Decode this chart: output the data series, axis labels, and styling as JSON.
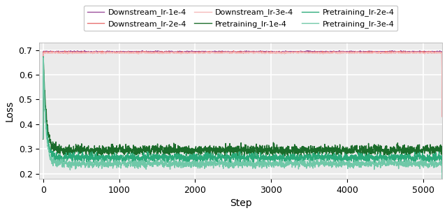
{
  "title": "",
  "xlabel": "Step",
  "ylabel": "Loss",
  "xlim": [
    -50,
    5250
  ],
  "ylim": [
    0.18,
    0.73
  ],
  "yticks": [
    0.2,
    0.3,
    0.4,
    0.5,
    0.6,
    0.7
  ],
  "xticks": [
    0,
    1000,
    2000,
    3000,
    4000,
    5000
  ],
  "figsize": [
    6.4,
    3.05
  ],
  "dpi": 100,
  "legend_labels": [
    "Downstream_lr-1e-4",
    "Downstream_lr-2e-4",
    "Downstream_lr-3e-4",
    "Pretraining_lr-1e-4",
    "Pretraining_lr-2e-4",
    "Pretraining_lr-3e-4"
  ],
  "downstream_colors": [
    "#9b4f9b",
    "#e87070",
    "#f5b8b8"
  ],
  "pretraining_colors": [
    "#1a6b2a",
    "#2aab7a",
    "#70c8a8"
  ],
  "seed": 42,
  "n_steps": 5250,
  "background_color": "#ebebeb",
  "grid_color": "white",
  "linewidth": 1.0
}
